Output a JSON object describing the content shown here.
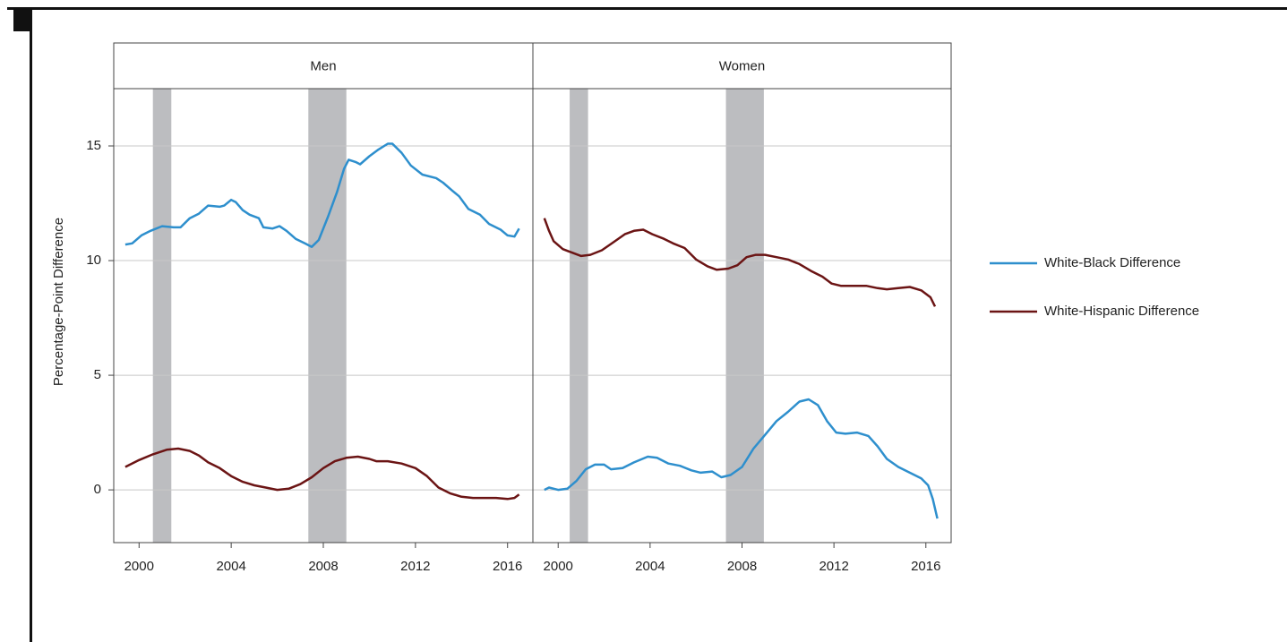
{
  "chart_data": {
    "type": "line",
    "ylabel": "Percentage-Point Difference",
    "ylim": [
      -2.3,
      17.5
    ],
    "yticks": [
      0,
      5,
      10,
      15
    ],
    "xlim": [
      1998.9,
      2017.1
    ],
    "xticks": [
      2000,
      2004,
      2008,
      2012,
      2016
    ],
    "grid": true,
    "legend": "right",
    "shade_color": "#bcbdc0",
    "series": [
      {
        "name": "White-Black Difference",
        "color": "#2e8fcd"
      },
      {
        "name": "White-Hispanic Difference",
        "color": "#6b1414"
      }
    ],
    "panels": [
      {
        "title": "Men",
        "recessions": [
          [
            2000.6,
            2001.4
          ],
          [
            2007.35,
            2009.0
          ]
        ],
        "data": [
          {
            "x": [
              1999.4,
              1999.7,
              2000.1,
              2000.5,
              2001.0,
              2001.5,
              2001.8,
              2002.2,
              2002.6,
              2003.0,
              2003.5,
              2003.7,
              2004.0,
              2004.2,
              2004.5,
              2004.8,
              2005.2,
              2005.4,
              2005.8,
              2006.1,
              2006.4,
              2006.8,
              2007.2,
              2007.5,
              2007.8,
              2008.2,
              2008.6,
              2008.9,
              2009.1,
              2009.4,
              2009.6,
              2010.0,
              2010.4,
              2010.8,
              2011.0,
              2011.4,
              2011.8,
              2012.3,
              2012.9,
              2013.2,
              2013.6,
              2013.9,
              2014.3,
              2014.8,
              2015.2,
              2015.7,
              2016.0,
              2016.3,
              2016.5
            ],
            "values": [
              10.7,
              10.75,
              11.1,
              11.3,
              11.5,
              11.45,
              11.45,
              11.85,
              12.05,
              12.4,
              12.35,
              12.4,
              12.65,
              12.55,
              12.2,
              12.0,
              11.85,
              11.45,
              11.4,
              11.5,
              11.3,
              10.95,
              10.75,
              10.6,
              10.9,
              11.9,
              13.0,
              14.0,
              14.4,
              14.3,
              14.2,
              14.55,
              14.85,
              15.1,
              15.1,
              14.7,
              14.15,
              13.75,
              13.6,
              13.4,
              13.05,
              12.8,
              12.25,
              12.0,
              11.6,
              11.35,
              11.1,
              11.05,
              11.4
            ]
          },
          {
            "x": [
              1999.4,
              2000.0,
              2000.6,
              2001.2,
              2001.7,
              2002.2,
              2002.6,
              2003.0,
              2003.5,
              2004.0,
              2004.5,
              2005.0,
              2005.5,
              2006.0,
              2006.5,
              2007.0,
              2007.5,
              2008.0,
              2008.5,
              2009.0,
              2009.5,
              2010.0,
              2010.3,
              2010.8,
              2011.4,
              2012.0,
              2012.5,
              2013.0,
              2013.5,
              2014.0,
              2014.5,
              2015.0,
              2015.5,
              2016.0,
              2016.3,
              2016.5
            ],
            "values": [
              1.0,
              1.3,
              1.55,
              1.75,
              1.8,
              1.7,
              1.5,
              1.2,
              0.95,
              0.6,
              0.35,
              0.2,
              0.1,
              0.0,
              0.05,
              0.25,
              0.55,
              0.95,
              1.25,
              1.4,
              1.45,
              1.35,
              1.25,
              1.25,
              1.15,
              0.95,
              0.6,
              0.1,
              -0.15,
              -0.3,
              -0.35,
              -0.35,
              -0.35,
              -0.4,
              -0.35,
              -0.2
            ]
          }
        ]
      },
      {
        "title": "Women",
        "recessions": [
          [
            2000.5,
            2001.3
          ],
          [
            2007.3,
            2008.95
          ]
        ],
        "data": [
          {
            "x": [
              1999.4,
              1999.6,
              2000.0,
              2000.4,
              2000.8,
              2001.2,
              2001.6,
              2002.0,
              2002.3,
              2002.8,
              2003.3,
              2003.9,
              2004.3,
              2004.8,
              2005.3,
              2005.8,
              2006.2,
              2006.7,
              2007.1,
              2007.5,
              2008.0,
              2008.5,
              2009.0,
              2009.5,
              2010.0,
              2010.5,
              2010.9,
              2011.3,
              2011.7,
              2012.1,
              2012.5,
              2013.0,
              2013.5,
              2013.9,
              2014.3,
              2014.8,
              2015.3,
              2015.8,
              2016.1,
              2016.3,
              2016.5
            ],
            "values": [
              0.0,
              0.1,
              0.0,
              0.05,
              0.4,
              0.9,
              1.1,
              1.1,
              0.9,
              0.95,
              1.2,
              1.45,
              1.4,
              1.15,
              1.05,
              0.85,
              0.75,
              0.8,
              0.55,
              0.65,
              1.0,
              1.8,
              2.4,
              3.0,
              3.4,
              3.85,
              3.95,
              3.7,
              3.0,
              2.5,
              2.45,
              2.5,
              2.35,
              1.9,
              1.35,
              1.0,
              0.75,
              0.5,
              0.2,
              -0.4,
              -1.25
            ]
          },
          {
            "x": [
              1999.4,
              1999.6,
              1999.8,
              2000.2,
              2000.6,
              2001.0,
              2001.4,
              2001.9,
              2002.4,
              2002.9,
              2003.3,
              2003.7,
              2004.1,
              2004.6,
              2005.0,
              2005.5,
              2006.0,
              2006.5,
              2006.9,
              2007.4,
              2007.8,
              2008.2,
              2008.6,
              2009.0,
              2009.5,
              2010.0,
              2010.5,
              2011.0,
              2011.5,
              2011.9,
              2012.3,
              2012.8,
              2013.4,
              2013.9,
              2014.3,
              2014.8,
              2015.3,
              2015.8,
              2016.2,
              2016.4
            ],
            "values": [
              11.85,
              11.3,
              10.85,
              10.5,
              10.35,
              10.2,
              10.25,
              10.45,
              10.8,
              11.15,
              11.3,
              11.35,
              11.15,
              10.95,
              10.75,
              10.55,
              10.05,
              9.75,
              9.6,
              9.65,
              9.8,
              10.15,
              10.25,
              10.25,
              10.15,
              10.05,
              9.85,
              9.55,
              9.3,
              9.0,
              8.9,
              8.9,
              8.9,
              8.8,
              8.75,
              8.8,
              8.85,
              8.7,
              8.4,
              8.0
            ]
          }
        ]
      }
    ]
  }
}
